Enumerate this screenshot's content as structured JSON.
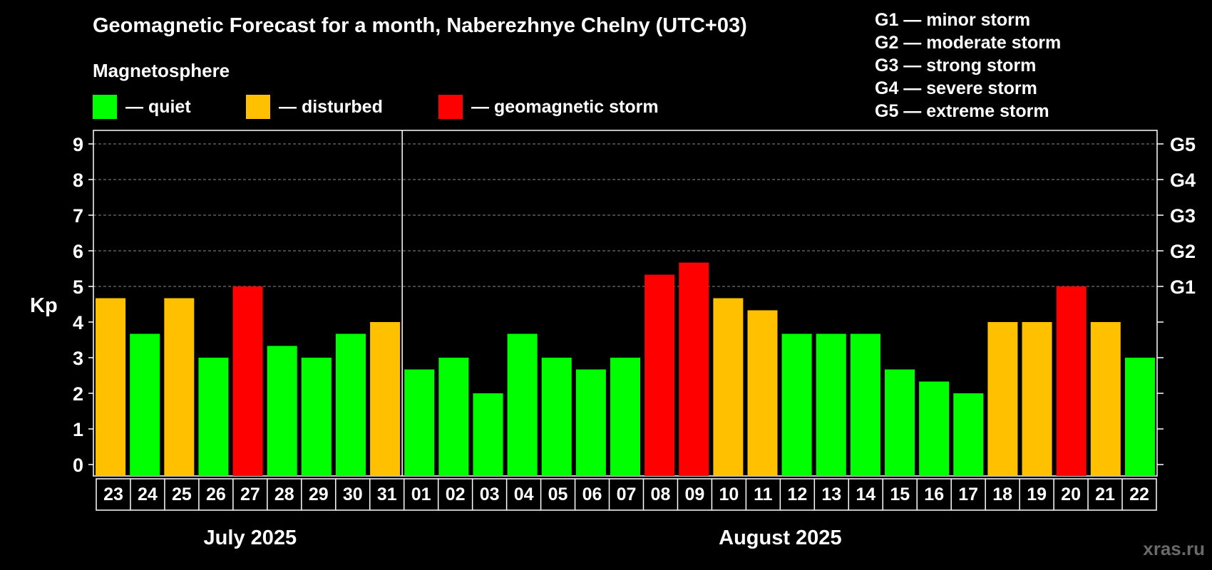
{
  "chart_data": {
    "type": "bar",
    "title": "Geomagnetic Forecast for a month, Naberezhnye Chelny (UTC+03)",
    "subtitle": "Magnetosphere",
    "ylabel": "Kp",
    "ylim": [
      0,
      9
    ],
    "yticks": [
      "0",
      "1",
      "2",
      "3",
      "4",
      "5",
      "6",
      "7",
      "8",
      "9"
    ],
    "grid": true,
    "right_axis": [
      {
        "kp": 5,
        "label": "G1"
      },
      {
        "kp": 6,
        "label": "G2"
      },
      {
        "kp": 7,
        "label": "G3"
      },
      {
        "kp": 8,
        "label": "G4"
      },
      {
        "kp": 9,
        "label": "G5"
      }
    ],
    "status_legend": [
      {
        "key": "quiet",
        "label": "— quiet",
        "color": "#00ff00"
      },
      {
        "key": "disturbed",
        "label": "— disturbed",
        "color": "#ffc000"
      },
      {
        "key": "storm",
        "label": "— geomagnetic storm",
        "color": "#ff0000"
      }
    ],
    "storm_levels": [
      "G1 — minor storm",
      "G2 — moderate storm",
      "G3 — strong storm",
      "G4 — severe storm",
      "G5 — extreme storm"
    ],
    "months": [
      {
        "label": "July 2025",
        "days": 9
      },
      {
        "label": "August 2025",
        "days": 22
      }
    ],
    "categories": [
      "23",
      "24",
      "25",
      "26",
      "27",
      "28",
      "29",
      "30",
      "31",
      "01",
      "02",
      "03",
      "04",
      "05",
      "06",
      "07",
      "08",
      "09",
      "10",
      "11",
      "12",
      "13",
      "14",
      "15",
      "16",
      "17",
      "18",
      "19",
      "20",
      "21",
      "22"
    ],
    "values": [
      4.67,
      3.67,
      4.67,
      3.0,
      5.0,
      3.33,
      3.0,
      3.67,
      4.0,
      2.67,
      3.0,
      2.0,
      3.67,
      3.0,
      2.67,
      3.0,
      5.33,
      5.67,
      4.67,
      4.33,
      3.67,
      3.67,
      3.67,
      2.67,
      2.33,
      2.0,
      4.0,
      4.0,
      5.0,
      4.0,
      3.0
    ],
    "status": [
      "disturbed",
      "quiet",
      "disturbed",
      "quiet",
      "storm",
      "quiet",
      "quiet",
      "quiet",
      "disturbed",
      "quiet",
      "quiet",
      "quiet",
      "quiet",
      "quiet",
      "quiet",
      "quiet",
      "storm",
      "storm",
      "disturbed",
      "disturbed",
      "quiet",
      "quiet",
      "quiet",
      "quiet",
      "quiet",
      "quiet",
      "disturbed",
      "disturbed",
      "storm",
      "disturbed",
      "quiet"
    ]
  },
  "watermark": "xras.ru"
}
